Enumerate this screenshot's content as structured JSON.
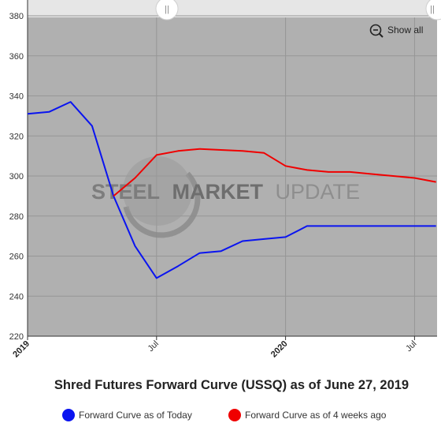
{
  "chart_data": {
    "type": "line",
    "title": "Shred Futures Forward Curve (USSQ) as of June 27, 2019",
    "xlabel": "",
    "ylabel": "",
    "ylim": [
      220,
      380
    ],
    "y_ticks": [
      "380",
      "360",
      "340",
      "320",
      "300",
      "280",
      "260",
      "240",
      "220"
    ],
    "x_ticks": [
      {
        "label": "2019",
        "bold": true
      },
      {
        "label": "Jul",
        "bold": false
      },
      {
        "label": "2020",
        "bold": true
      },
      {
        "label": "Jul",
        "bold": false
      }
    ],
    "grid": true,
    "legend_position": "bottom",
    "series": [
      {
        "name": "Forward Curve as of Today",
        "color": "#0a14f0",
        "points": [
          [
            "2019-01-01",
            331
          ],
          [
            "2019-02-01",
            332
          ],
          [
            "2019-03-01",
            337
          ],
          [
            "2019-04-01",
            325
          ],
          [
            "2019-05-01",
            290
          ],
          [
            "2019-06-01",
            265
          ],
          [
            "2019-07-01",
            249
          ],
          [
            "2019-08-01",
            255
          ],
          [
            "2019-09-01",
            261.5
          ],
          [
            "2019-10-01",
            262.5
          ],
          [
            "2019-11-01",
            267.5
          ],
          [
            "2019-12-01",
            268.5
          ],
          [
            "2020-01-01",
            269.5
          ],
          [
            "2020-02-01",
            275
          ],
          [
            "2020-03-01",
            275
          ],
          [
            "2020-04-01",
            275
          ],
          [
            "2020-05-01",
            275
          ],
          [
            "2020-06-01",
            275
          ],
          [
            "2020-07-01",
            275
          ],
          [
            "2020-08-01",
            275
          ]
        ]
      },
      {
        "name": "Forward Curve as of 4 weeks ago",
        "color": "#f00000",
        "points": [
          [
            "2019-05-01",
            290
          ],
          [
            "2019-06-01",
            299
          ],
          [
            "2019-07-01",
            310.5
          ],
          [
            "2019-08-01",
            312.5
          ],
          [
            "2019-09-01",
            313.5
          ],
          [
            "2019-10-01",
            313
          ],
          [
            "2019-11-01",
            312.5
          ],
          [
            "2019-12-01",
            311.5
          ],
          [
            "2020-01-01",
            305
          ],
          [
            "2020-02-01",
            303
          ],
          [
            "2020-03-01",
            302
          ],
          [
            "2020-04-01",
            302
          ],
          [
            "2020-05-01",
            301
          ],
          [
            "2020-06-01",
            300
          ],
          [
            "2020-07-01",
            299
          ],
          [
            "2020-08-01",
            297
          ]
        ]
      }
    ]
  },
  "controls": {
    "show_all_label": "Show all",
    "zoom_icon": "zoom-out-icon",
    "handle_left": "||",
    "handle_right": "||"
  },
  "watermark": {
    "word1": "STEEL",
    "word2": "MARKET",
    "word3": "UPDATE"
  },
  "colors": {
    "plot_background": "#b0b0b0",
    "navigator_background": "#e6e6e6",
    "grid": "#969696"
  }
}
